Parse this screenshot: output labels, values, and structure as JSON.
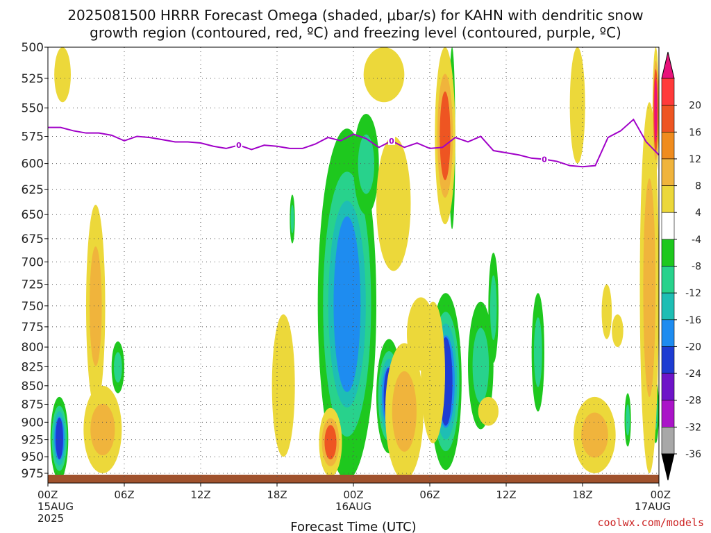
{
  "title": {
    "line1": "2025081500 HRRR Forecast Omega (shaded, μbar/s) for KAHN with dendritic snow",
    "line2": "growth region (contoured, red, ºC) and freezing level (contoured, purple, ºC)"
  },
  "credit": "coolwx.com/models",
  "colors": {
    "freezing_line": "#a000c8",
    "ground": "#a0522d",
    "grid": "#555555"
  },
  "colorbar": {
    "labels": [
      "20",
      "16",
      "12",
      "8",
      "4",
      "-4",
      "-8",
      "-12",
      "-16",
      "-20",
      "-24",
      "-28",
      "-32",
      "-36"
    ],
    "colors": [
      "#e8127a",
      "#ff3a3a",
      "#ee5522",
      "#f08c1e",
      "#f0b43c",
      "#ecd83a",
      "#ffffff",
      "#1ec81e",
      "#28d28c",
      "#1ebeb4",
      "#1e8cf0",
      "#1e3cd2",
      "#6e14c8",
      "#aa14c8",
      "#a8a8a8",
      "#000000"
    ]
  },
  "chart_data": {
    "type": "heatmap",
    "title": "2025081500 HRRR Forecast Omega (shaded, μbar/s) for KAHN with dendritic snow growth region (contoured, red, ºC) and freezing level (contoured, purple, ºC)",
    "xlabel": "Forecast Time (UTC)",
    "ylabel": "",
    "x_ticks": [
      {
        "h": 0,
        "label": "00Z",
        "sub": "15AUG",
        "sub2": "2025"
      },
      {
        "h": 6,
        "label": "06Z"
      },
      {
        "h": 12,
        "label": "12Z"
      },
      {
        "h": 18,
        "label": "18Z"
      },
      {
        "h": 24,
        "label": "00Z",
        "sub": "16AUG"
      },
      {
        "h": 30,
        "label": "06Z"
      },
      {
        "h": 36,
        "label": "12Z"
      },
      {
        "h": 42,
        "label": "18Z"
      },
      {
        "h": 48,
        "label": "00Z",
        "sub": "17AUG"
      }
    ],
    "xlim": [
      0,
      48
    ],
    "y_ticks": [
      500,
      525,
      550,
      575,
      600,
      625,
      650,
      675,
      700,
      725,
      750,
      775,
      800,
      825,
      850,
      875,
      900,
      925,
      950,
      975
    ],
    "ylim": [
      500,
      990
    ],
    "y_scale": "log-pressure",
    "freezing_level": {
      "label": "0",
      "label_positions": [
        15,
        27,
        39
      ],
      "points": [
        [
          0,
          567
        ],
        [
          1,
          567
        ],
        [
          2,
          570
        ],
        [
          3,
          572
        ],
        [
          4,
          572
        ],
        [
          5,
          574
        ],
        [
          6,
          579
        ],
        [
          7,
          575
        ],
        [
          8,
          576
        ],
        [
          9,
          578
        ],
        [
          10,
          580
        ],
        [
          11,
          580
        ],
        [
          12,
          581
        ],
        [
          13,
          584
        ],
        [
          14,
          586
        ],
        [
          15,
          583
        ],
        [
          16,
          587
        ],
        [
          17,
          583
        ],
        [
          18,
          584
        ],
        [
          19,
          586
        ],
        [
          20,
          586
        ],
        [
          21,
          582
        ],
        [
          22,
          576
        ],
        [
          23,
          579
        ],
        [
          24,
          573
        ],
        [
          25,
          577
        ],
        [
          26,
          585
        ],
        [
          27,
          579
        ],
        [
          28,
          585
        ],
        [
          29,
          581
        ],
        [
          30,
          586
        ],
        [
          31,
          585
        ],
        [
          32,
          576
        ],
        [
          33,
          580
        ],
        [
          34,
          575
        ],
        [
          35,
          588
        ],
        [
          36,
          590
        ],
        [
          37,
          592
        ],
        [
          38,
          595
        ],
        [
          39,
          596
        ],
        [
          40,
          598
        ],
        [
          41,
          602
        ],
        [
          42,
          603
        ],
        [
          43,
          602
        ],
        [
          44,
          576
        ],
        [
          45,
          570
        ],
        [
          46,
          560
        ],
        [
          47,
          580
        ],
        [
          48,
          592
        ]
      ]
    },
    "omega_features": [
      {
        "kind": "neg",
        "h0": 0.2,
        "h1": 1.6,
        "p0": 865,
        "p1": 985,
        "peak": -20
      },
      {
        "kind": "neg",
        "h0": 5.0,
        "h1": 6.0,
        "p0": 793,
        "p1": 860,
        "peak": -8
      },
      {
        "kind": "neg",
        "h0": 19.0,
        "h1": 19.4,
        "p0": 630,
        "p1": 680,
        "peak": -8
      },
      {
        "kind": "neg",
        "h0": 21.2,
        "h1": 25.8,
        "p0": 568,
        "p1": 985,
        "peak": -16
      },
      {
        "kind": "neg",
        "h0": 24.0,
        "h1": 26.0,
        "p0": 555,
        "p1": 650,
        "peak": -8
      },
      {
        "kind": "neg",
        "h0": 25.8,
        "h1": 27.8,
        "p0": 790,
        "p1": 945,
        "peak": -24
      },
      {
        "kind": "neg",
        "h0": 27.2,
        "h1": 27.6,
        "p0": 600,
        "p1": 680,
        "peak": -8
      },
      {
        "kind": "neg",
        "h0": 30.0,
        "h1": 32.5,
        "p0": 735,
        "p1": 970,
        "peak": -24
      },
      {
        "kind": "neg",
        "h0": 31.5,
        "h1": 32.0,
        "p0": 500,
        "p1": 665,
        "peak": -8
      },
      {
        "kind": "neg",
        "h0": 33.0,
        "h1": 35.0,
        "p0": 745,
        "p1": 910,
        "peak": -8
      },
      {
        "kind": "neg",
        "h0": 34.6,
        "h1": 35.4,
        "p0": 690,
        "p1": 820,
        "peak": -8
      },
      {
        "kind": "neg",
        "h0": 38.0,
        "h1": 39.0,
        "p0": 735,
        "p1": 885,
        "peak": -8
      },
      {
        "kind": "neg",
        "h0": 45.3,
        "h1": 45.8,
        "p0": 860,
        "p1": 935,
        "peak": -8
      },
      {
        "kind": "neg",
        "h0": 47.5,
        "h1": 48.0,
        "p0": 840,
        "p1": 930,
        "peak": -8
      },
      {
        "kind": "pos",
        "h0": 0.5,
        "h1": 1.8,
        "p0": 500,
        "p1": 545,
        "peak": 6
      },
      {
        "kind": "pos",
        "h0": 3.0,
        "h1": 4.5,
        "p0": 640,
        "p1": 880,
        "peak": 8
      },
      {
        "kind": "pos",
        "h0": 2.8,
        "h1": 5.8,
        "p0": 850,
        "p1": 975,
        "peak": 8
      },
      {
        "kind": "pos",
        "h0": 17.6,
        "h1": 19.4,
        "p0": 760,
        "p1": 950,
        "peak": 6
      },
      {
        "kind": "pos",
        "h0": 21.3,
        "h1": 23.1,
        "p0": 880,
        "p1": 980,
        "peak": 12
      },
      {
        "kind": "pos",
        "h0": 24.8,
        "h1": 28.0,
        "p0": 500,
        "p1": 545,
        "peak": 6
      },
      {
        "kind": "pos",
        "h0": 25.8,
        "h1": 28.5,
        "p0": 575,
        "p1": 710,
        "peak": 6
      },
      {
        "kind": "pos",
        "h0": 26.5,
        "h1": 29.5,
        "p0": 795,
        "p1": 985,
        "peak": 10
      },
      {
        "kind": "pos",
        "h0": 28.2,
        "h1": 30.4,
        "p0": 740,
        "p1": 830,
        "peak": 6
      },
      {
        "kind": "pos",
        "h0": 29.3,
        "h1": 31.2,
        "p0": 745,
        "p1": 930,
        "peak": 6
      },
      {
        "kind": "pos",
        "h0": 30.4,
        "h1": 32.0,
        "p0": 500,
        "p1": 660,
        "peak": 12
      },
      {
        "kind": "pos",
        "h0": 33.8,
        "h1": 35.4,
        "p0": 865,
        "p1": 905,
        "peak": 6
      },
      {
        "kind": "pos",
        "h0": 41.0,
        "h1": 42.2,
        "p0": 500,
        "p1": 600,
        "peak": 6
      },
      {
        "kind": "pos",
        "h0": 41.3,
        "h1": 44.6,
        "p0": 865,
        "p1": 975,
        "peak": 8
      },
      {
        "kind": "pos",
        "h0": 43.5,
        "h1": 44.3,
        "p0": 725,
        "p1": 790,
        "peak": 6
      },
      {
        "kind": "pos",
        "h0": 44.3,
        "h1": 45.2,
        "p0": 760,
        "p1": 800,
        "peak": 6
      },
      {
        "kind": "pos",
        "h0": 46.5,
        "h1": 48.0,
        "p0": 545,
        "p1": 975,
        "peak": 10
      },
      {
        "kind": "pos",
        "h0": 47.5,
        "h1": 48.0,
        "p0": 500,
        "p1": 610,
        "peak": 20
      }
    ]
  }
}
